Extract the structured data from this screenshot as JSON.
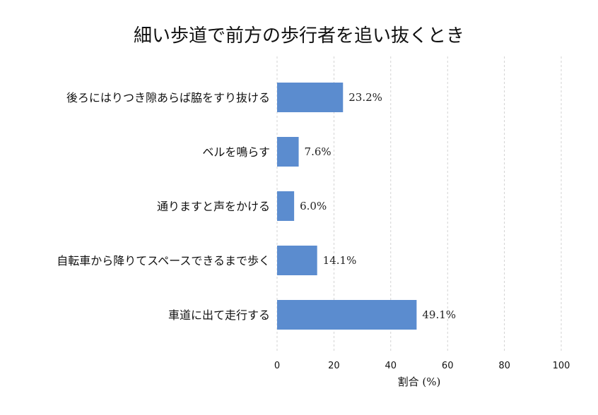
{
  "chart_data": {
    "type": "bar",
    "orientation": "horizontal",
    "title": "細い歩道で前方の歩行者を追い抜くとき",
    "xlabel": "割合 (%)",
    "ylabel": "",
    "xlim": [
      0,
      100
    ],
    "xticks": [
      0,
      20,
      40,
      60,
      80,
      100
    ],
    "grid": "vertical dashed",
    "bar_color": "#5b8ccf",
    "categories": [
      "後ろにはりつき隙あらば脇をすり抜ける",
      "ベルを鳴らす",
      "通りますと声をかける",
      "自転車から降りてスペースできるまで歩く",
      "車道に出て走行する"
    ],
    "values": [
      23.2,
      7.6,
      6.0,
      14.1,
      49.1
    ],
    "value_labels": [
      "23.2%",
      "7.6%",
      "6.0%",
      "14.1%",
      "49.1%"
    ]
  }
}
